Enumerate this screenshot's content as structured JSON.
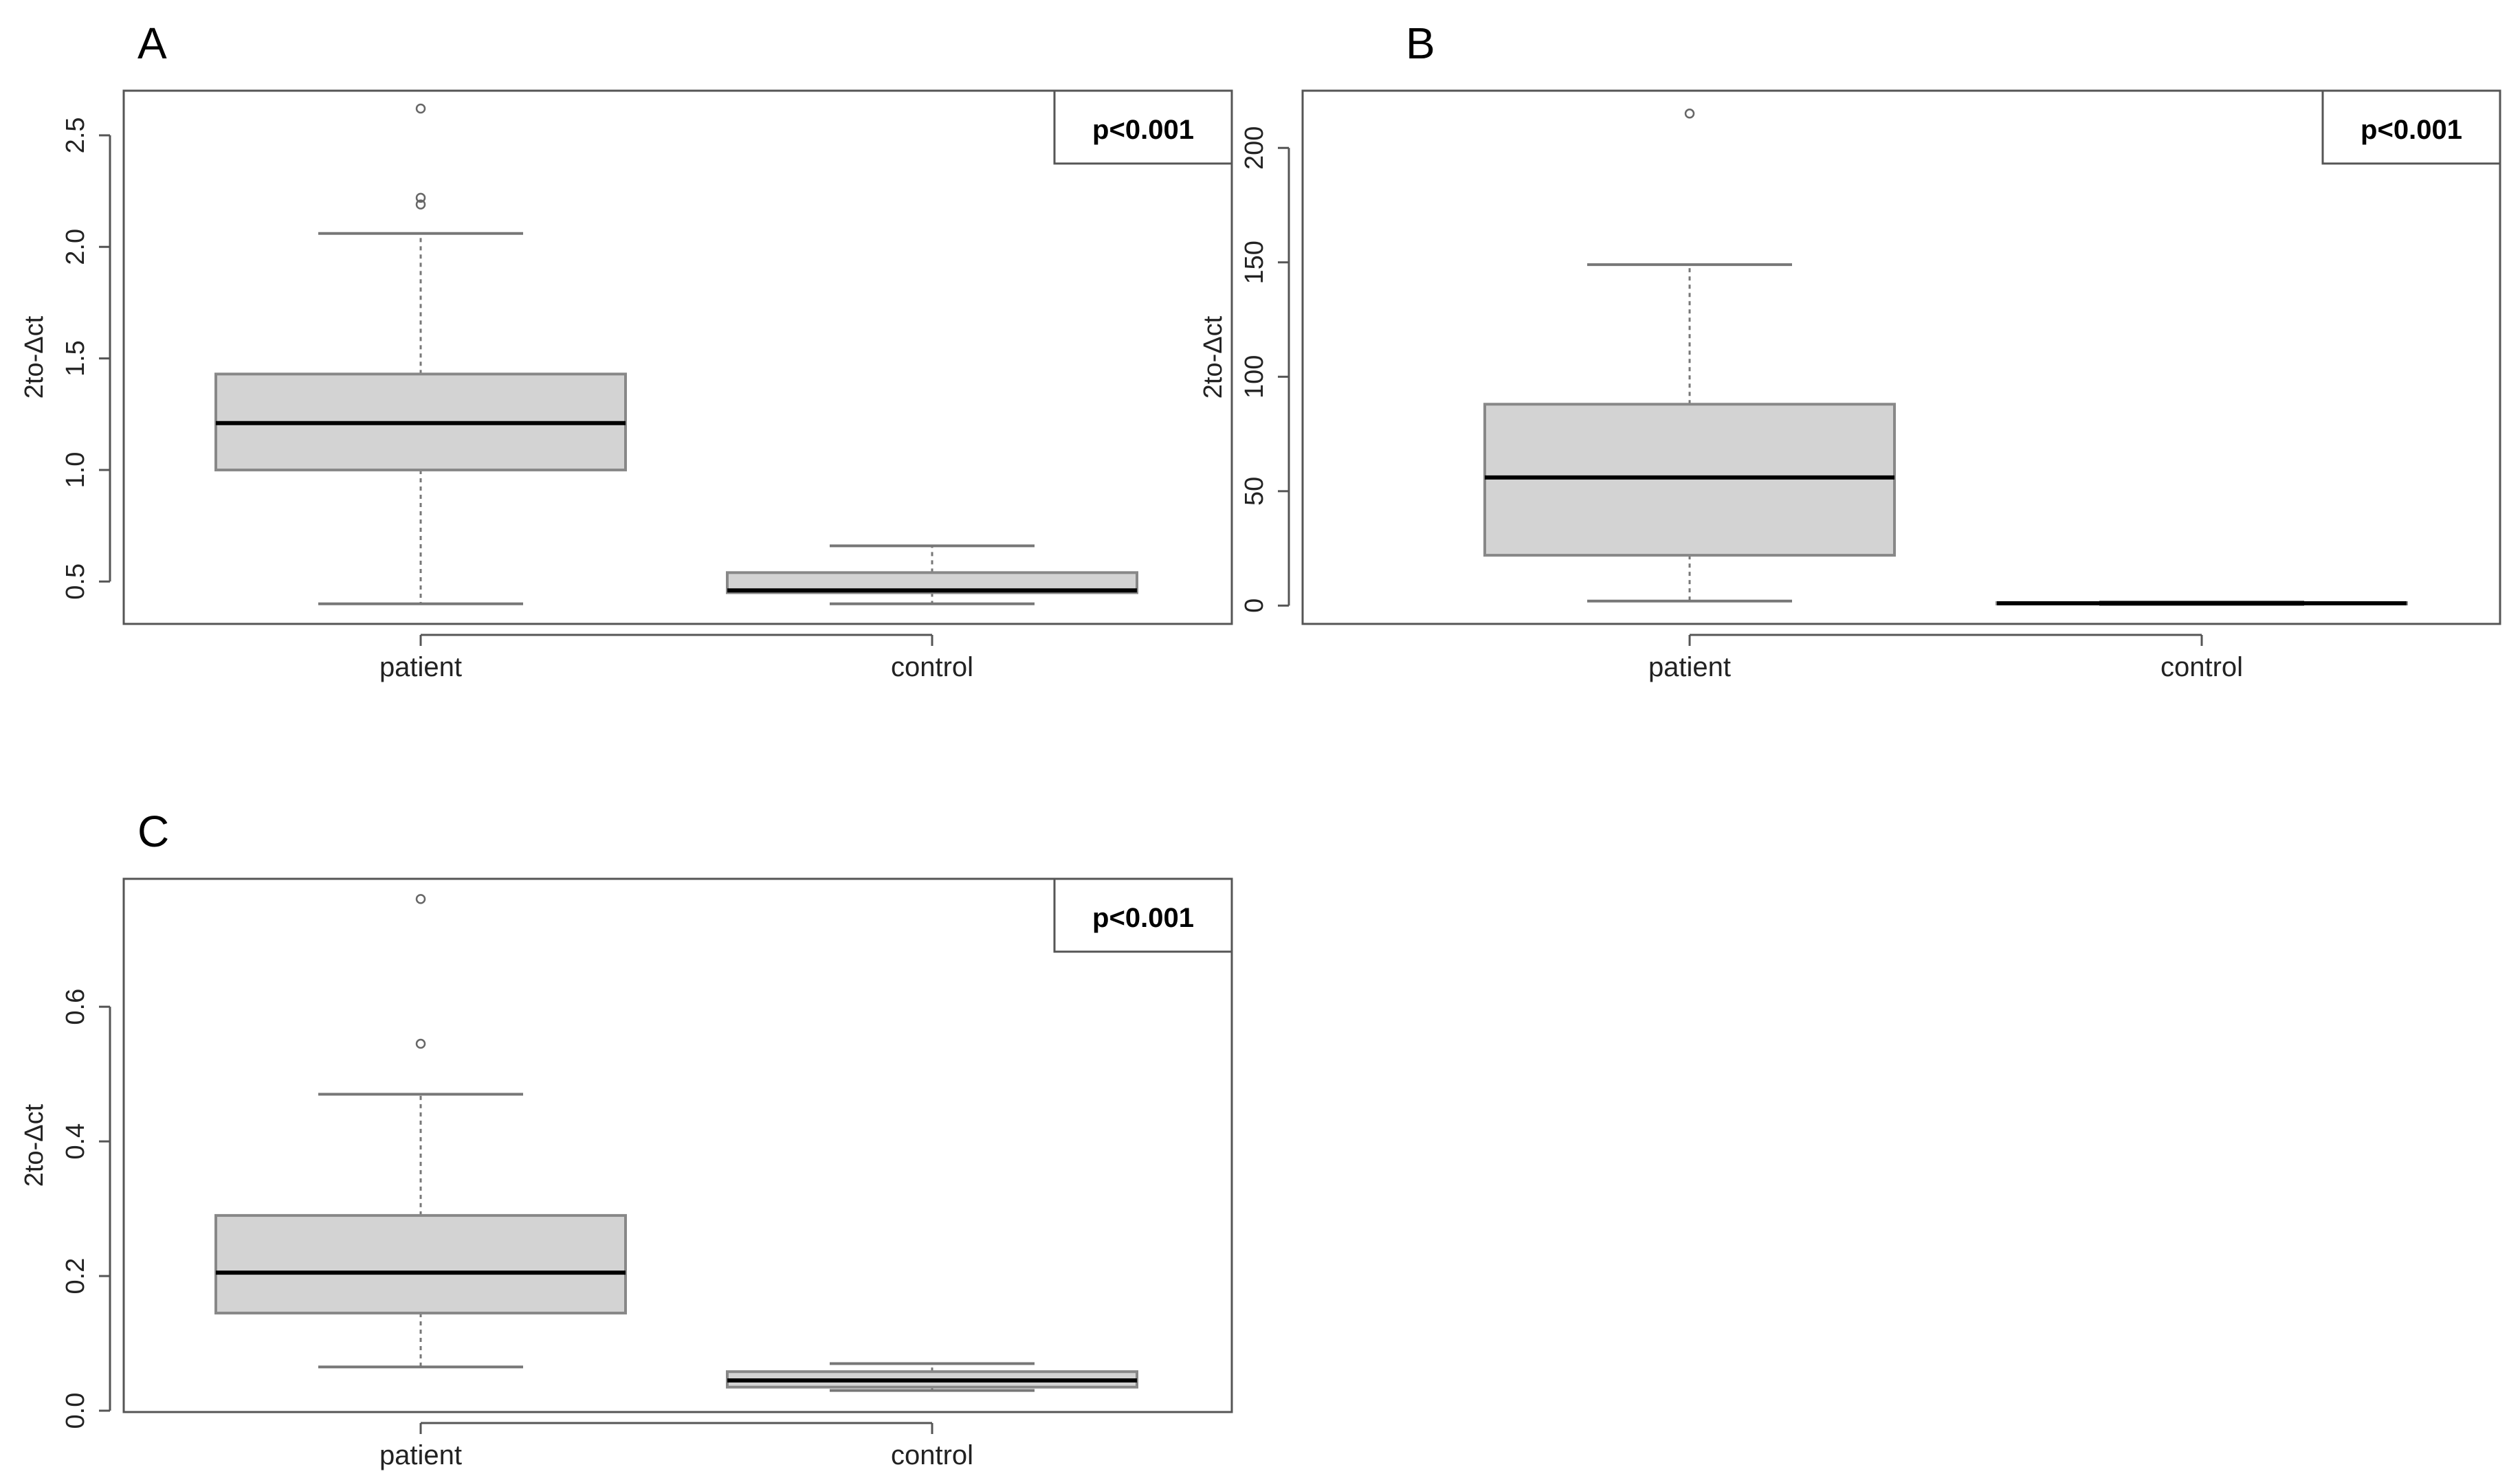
{
  "figure": {
    "panels": [
      "A",
      "B",
      "C"
    ]
  },
  "chart_data": [
    {
      "type": "box",
      "panel": "A",
      "ylabel": "2to-Δct",
      "categories": [
        "patient",
        "control"
      ],
      "annotation": "p<0.001",
      "ylim": [
        0.31,
        2.7
      ],
      "yticks": [
        0.5,
        1.0,
        1.5,
        2.0,
        2.5
      ],
      "ytick_labels": [
        "0.5",
        "1.0",
        "1.5",
        "2.0",
        "2.5"
      ],
      "grid": false,
      "boxes": [
        {
          "category": "patient",
          "whisker_low": 0.4,
          "q1": 1.0,
          "median": 1.21,
          "q3": 1.43,
          "whisker_high": 2.06,
          "outliers": [
            2.19,
            2.22,
            2.62
          ]
        },
        {
          "category": "control",
          "whisker_low": 0.4,
          "q1": 0.45,
          "median": 0.46,
          "q3": 0.54,
          "whisker_high": 0.66,
          "outliers": []
        }
      ]
    },
    {
      "type": "box",
      "panel": "B",
      "ylabel": "2to-Δct",
      "categories": [
        "patient",
        "control"
      ],
      "annotation": "p<0.001",
      "ylim": [
        -8,
        225
      ],
      "yticks": [
        0,
        50,
        100,
        150,
        200
      ],
      "ytick_labels": [
        "0",
        "50",
        "100",
        "150",
        "200"
      ],
      "grid": false,
      "boxes": [
        {
          "category": "patient",
          "whisker_low": 2,
          "q1": 22,
          "median": 56,
          "q3": 88,
          "whisker_high": 149,
          "outliers": [
            215
          ]
        },
        {
          "category": "control",
          "whisker_low": 0.5,
          "q1": 0.8,
          "median": 1.0,
          "q3": 1.3,
          "whisker_high": 1.6,
          "outliers": []
        }
      ]
    },
    {
      "type": "box",
      "panel": "C",
      "ylabel": "2to-Δct",
      "categories": [
        "patient",
        "control"
      ],
      "annotation": "p<0.001",
      "ylim": [
        -0.002,
        0.79
      ],
      "yticks": [
        0.0,
        0.2,
        0.4,
        0.6
      ],
      "ytick_labels": [
        "0.0",
        "0.2",
        "0.4",
        "0.6"
      ],
      "grid": false,
      "boxes": [
        {
          "category": "patient",
          "whisker_low": 0.065,
          "q1": 0.145,
          "median": 0.205,
          "q3": 0.29,
          "whisker_high": 0.47,
          "outliers": [
            0.545,
            0.76
          ]
        },
        {
          "category": "control",
          "whisker_low": 0.03,
          "q1": 0.035,
          "median": 0.045,
          "q3": 0.058,
          "whisker_high": 0.07,
          "outliers": []
        }
      ]
    }
  ],
  "colors": {
    "box_fill": "#d3d3d3",
    "box_stroke": "#888888",
    "median": "#000000",
    "frame": "#555555"
  }
}
